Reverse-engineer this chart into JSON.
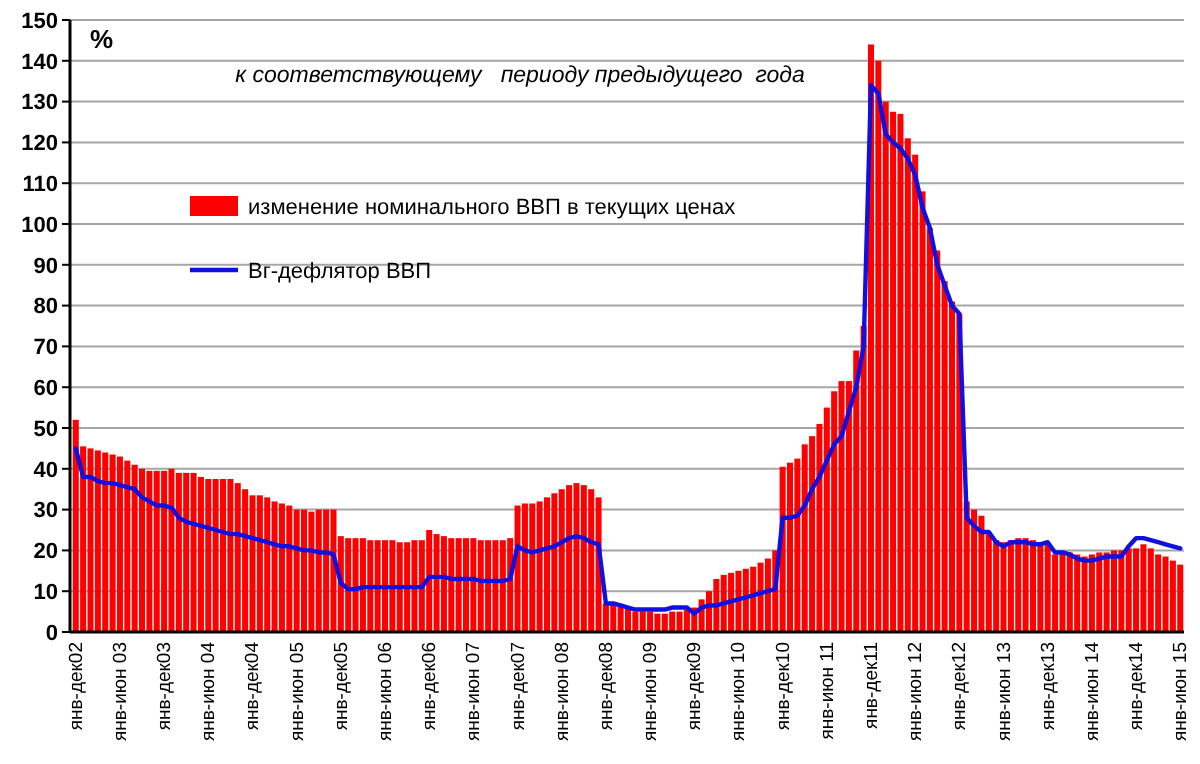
{
  "chart_data": {
    "type": "bar",
    "title": "к соответствующему   периоду предыдущего  года",
    "ylabel": "%",
    "categories": [
      "янв-дек02",
      null,
      null,
      null,
      null,
      null,
      "янв-июн 03",
      null,
      null,
      null,
      null,
      null,
      "янв-дек03",
      null,
      null,
      null,
      null,
      null,
      "янв-июн 04",
      null,
      null,
      null,
      null,
      null,
      "янв-дек04",
      null,
      null,
      null,
      null,
      null,
      "янв-июн 05",
      null,
      null,
      null,
      null,
      null,
      "янв-дек05",
      null,
      null,
      null,
      null,
      null,
      "янв-июн 06",
      null,
      null,
      null,
      null,
      null,
      "янв-дек06",
      null,
      null,
      null,
      null,
      null,
      "янв-июн 07",
      null,
      null,
      null,
      null,
      null,
      "янв-дек07",
      null,
      null,
      null,
      null,
      null,
      "янв-июн 08",
      null,
      null,
      null,
      null,
      null,
      "янв-дек08",
      null,
      null,
      null,
      null,
      null,
      "янв-июн 09",
      null,
      null,
      null,
      null,
      null,
      "янв-дек09",
      null,
      null,
      null,
      null,
      null,
      "янв-июн 10",
      null,
      null,
      null,
      null,
      null,
      "янв-дек10",
      null,
      null,
      null,
      null,
      null,
      "янв-июн 11",
      null,
      null,
      null,
      null,
      null,
      "янв-дек11",
      null,
      null,
      null,
      null,
      null,
      "янв-июн 12",
      null,
      null,
      null,
      null,
      null,
      "янв-дек12",
      null,
      null,
      null,
      null,
      null,
      "янв-июн 13",
      null,
      null,
      null,
      null,
      null,
      "янв-дек13",
      null,
      null,
      null,
      null,
      null,
      "янв-июн 14",
      null,
      null,
      null,
      null,
      null,
      "янв-дек14",
      null,
      null,
      null,
      null,
      null,
      "янв-июн 15"
    ],
    "series": [
      {
        "name": "изменение номинального ВВП в текущих ценах",
        "color": "#ff0000",
        "values": [
          52,
          45.5,
          45,
          44.5,
          44,
          43.5,
          43,
          42,
          41,
          40,
          39.5,
          39.5,
          39.5,
          40,
          39,
          39,
          39,
          38,
          37.5,
          37.5,
          37.5,
          37.5,
          36.5,
          35,
          33.5,
          33.5,
          33,
          32,
          31.5,
          31,
          30,
          30,
          29.5,
          30,
          30,
          30,
          23.5,
          23,
          23,
          23,
          22.5,
          22.5,
          22.5,
          22.5,
          22,
          22,
          22.5,
          22.5,
          25,
          24,
          23.5,
          23,
          23,
          23,
          23,
          22.5,
          22.5,
          22.5,
          22.5,
          23,
          31,
          31.5,
          31.5,
          32,
          33,
          34,
          35,
          36,
          36.5,
          36,
          35,
          33,
          7,
          7,
          6.5,
          6,
          5,
          5,
          5,
          4.5,
          4.5,
          5,
          5,
          5.5,
          6,
          8,
          10,
          13,
          14,
          14.5,
          15,
          15.5,
          16,
          17,
          18,
          20,
          40.5,
          41.5,
          42.5,
          46,
          48,
          51,
          55,
          59,
          61.5,
          61.5,
          69,
          75,
          144,
          140,
          130,
          127.5,
          127,
          121,
          117,
          108,
          99,
          93.5,
          86,
          81,
          78,
          32,
          30,
          28.5,
          24.5,
          22.5,
          22,
          22.5,
          23,
          23,
          22.5,
          22,
          21.5,
          19,
          19.5,
          19.5,
          19,
          18.5,
          19,
          19.5,
          19.5,
          20,
          20,
          20.5,
          20.5,
          21.5,
          20.5,
          19,
          18.5,
          17.5,
          16.5
        ]
      },
      {
        "name": "Вг-дефлятор ВВП",
        "type": "line",
        "color": "#1010e0",
        "values": [
          45,
          38,
          38,
          37,
          36.5,
          36.5,
          36,
          35.5,
          35,
          33,
          32,
          31,
          31,
          30.5,
          28,
          27,
          26.5,
          26,
          25.5,
          25,
          24.5,
          24,
          24,
          23.5,
          23,
          22.5,
          22,
          21.5,
          21,
          21,
          20.5,
          20,
          20,
          19.5,
          19.5,
          19,
          12,
          10.5,
          10.5,
          11,
          11,
          11,
          11,
          11,
          11,
          11,
          11,
          11,
          13.5,
          13.5,
          13.5,
          13,
          13,
          13,
          13,
          12.5,
          12.5,
          12.5,
          12.5,
          13,
          21,
          20,
          19.5,
          20,
          20.5,
          21,
          22,
          23,
          23.5,
          23,
          22,
          21.5,
          7,
          7,
          6.5,
          6,
          5.5,
          5.5,
          5.5,
          5.5,
          5.5,
          6,
          6,
          6,
          4.5,
          6,
          6.5,
          6.5,
          7,
          7.5,
          8,
          8.5,
          9,
          9.5,
          10,
          10.5,
          28,
          28,
          28.5,
          31,
          35,
          38,
          42,
          46,
          48,
          54,
          60,
          70,
          134,
          132,
          122,
          120,
          118.5,
          116,
          112,
          104,
          99,
          90,
          85,
          80,
          78,
          28,
          26,
          24.5,
          24.5,
          22,
          21,
          22,
          22,
          22,
          21.5,
          21.5,
          22,
          19.5,
          19.5,
          19,
          18,
          17.5,
          17.5,
          18,
          18.5,
          18.5,
          18.5,
          21,
          23,
          23,
          22.5,
          22,
          21.5,
          21,
          20.5
        ]
      }
    ],
    "ylim": [
      0,
      150
    ],
    "yticks": [
      0,
      10,
      20,
      30,
      40,
      50,
      60,
      70,
      80,
      90,
      100,
      110,
      120,
      130,
      140,
      150
    ],
    "grid": "y",
    "legend": "top left",
    "marker": "none",
    "line_style": "solid"
  }
}
